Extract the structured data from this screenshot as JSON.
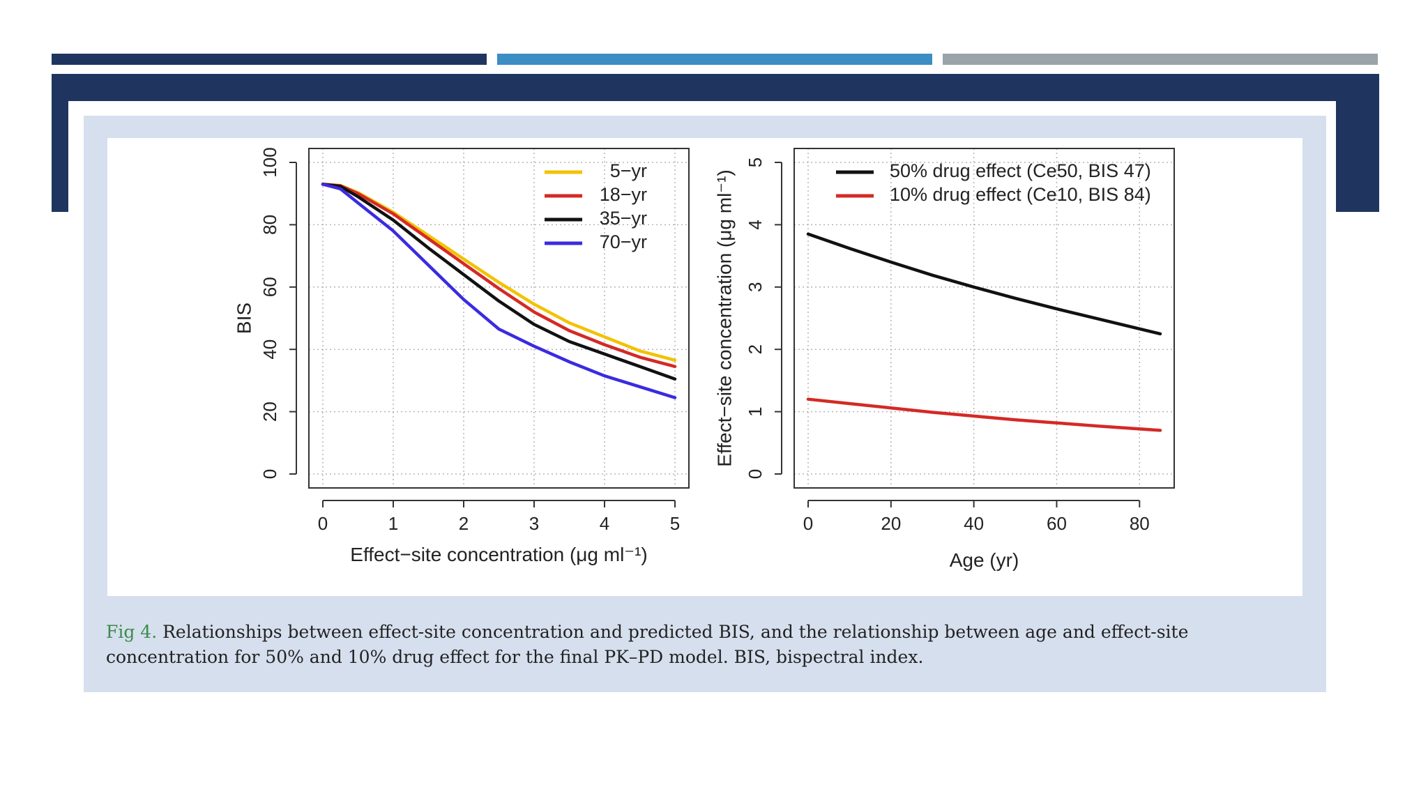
{
  "colors": {
    "navy": "#1f355f",
    "mid_blue": "#3b8dc4",
    "gray": "#9aa3a8",
    "panel": "#d6dfee",
    "caption_label": "#3b8a4a"
  },
  "caption": {
    "label": "Fig 4.",
    "text": " Relationships between effect-site concentration and predicted BIS, and the relationship between age and effect-site concentration for 50% and 10% drug effect for the final PK–PD model. BIS, bispectral index."
  },
  "chart_data": [
    {
      "type": "line",
      "xlabel": "Effect−site concentration (μg ml⁻¹)",
      "ylabel": "BIS",
      "xlim": [
        0,
        5
      ],
      "ylim": [
        0,
        100
      ],
      "xticks": [
        0,
        1,
        2,
        3,
        4,
        5
      ],
      "yticks": [
        0,
        20,
        40,
        60,
        80,
        100
      ],
      "grid": true,
      "legend_position": "top-right",
      "series": [
        {
          "name": "5−yr",
          "color": "#f2c200",
          "x": [
            0,
            0.25,
            0.5,
            1,
            1.5,
            2,
            2.5,
            3,
            3.5,
            4,
            4.5,
            5
          ],
          "y": [
            93,
            92.6,
            90.3,
            84,
            76.5,
            69,
            61.5,
            54.5,
            48.5,
            44,
            39.5,
            36.5
          ]
        },
        {
          "name": "18−yr",
          "color": "#d42a25",
          "x": [
            0,
            0.25,
            0.5,
            1,
            1.5,
            2,
            2.5,
            3,
            3.5,
            4,
            4.5,
            5
          ],
          "y": [
            93,
            92.5,
            90,
            83.5,
            75.5,
            67.5,
            59.5,
            52,
            46,
            41.5,
            37.5,
            34.5
          ]
        },
        {
          "name": "35−yr",
          "color": "#111111",
          "x": [
            0,
            0.25,
            0.5,
            1,
            1.5,
            2,
            2.5,
            3,
            3.5,
            4,
            4.5,
            5
          ],
          "y": [
            93,
            92.3,
            89,
            81.5,
            72.5,
            64,
            55.5,
            48,
            42.5,
            38.5,
            34.5,
            30.5
          ]
        },
        {
          "name": "70−yr",
          "color": "#3b2be0",
          "x": [
            0,
            0.25,
            0.5,
            1,
            1.5,
            2,
            2.5,
            3,
            3.5,
            4,
            4.5,
            5
          ],
          "y": [
            93,
            91.5,
            87,
            78,
            67,
            56,
            46.5,
            41,
            36,
            31.5,
            28,
            24.5
          ]
        }
      ]
    },
    {
      "type": "line",
      "xlabel": "Age (yr)",
      "ylabel": "Effect−site concentration (μg ml⁻¹)",
      "xlim": [
        0,
        85
      ],
      "ylim": [
        0,
        5
      ],
      "xticks": [
        0,
        20,
        40,
        60,
        80
      ],
      "yticks": [
        0,
        1,
        2,
        3,
        4,
        5
      ],
      "grid": true,
      "legend_position": "top-left",
      "series": [
        {
          "name": "50% drug effect (Ce50, BIS 47)",
          "color": "#111111",
          "x": [
            0,
            10,
            20,
            30,
            40,
            50,
            60,
            70,
            85
          ],
          "y": [
            3.85,
            3.62,
            3.4,
            3.19,
            3.0,
            2.82,
            2.65,
            2.49,
            2.25
          ]
        },
        {
          "name": "10% drug effect (Ce10, BIS 84)",
          "color": "#d42a25",
          "x": [
            0,
            10,
            20,
            30,
            40,
            50,
            60,
            70,
            85
          ],
          "y": [
            1.2,
            1.13,
            1.06,
            0.99,
            0.93,
            0.87,
            0.82,
            0.77,
            0.7
          ]
        }
      ]
    }
  ]
}
